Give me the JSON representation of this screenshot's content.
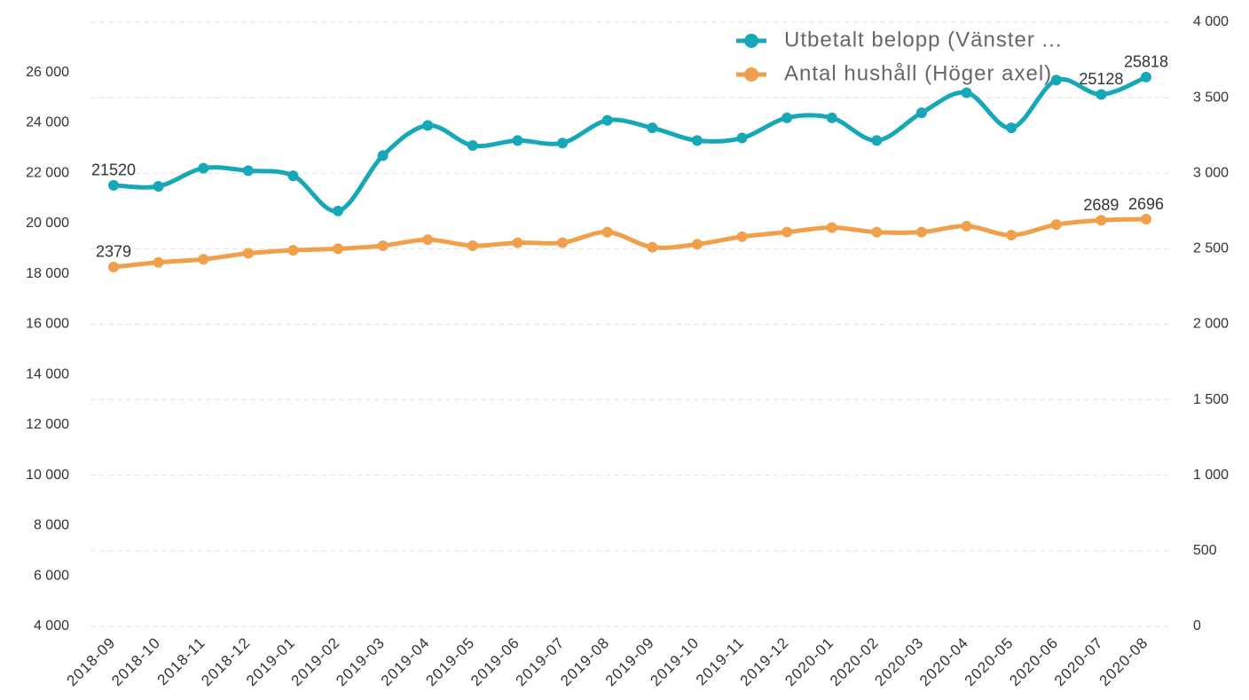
{
  "chart_data": {
    "type": "line",
    "x": [
      "2018-09",
      "2018-10",
      "2018-11",
      "2018-12",
      "2019-01",
      "2019-02",
      "2019-03",
      "2019-04",
      "2019-05",
      "2019-06",
      "2019-07",
      "2019-08",
      "2019-09",
      "2019-10",
      "2019-11",
      "2019-12",
      "2020-01",
      "2020-02",
      "2020-03",
      "2020-04",
      "2020-05",
      "2020-06",
      "2020-07",
      "2020-08"
    ],
    "series": [
      {
        "name": "Utbetalt belopp (Vänster ...",
        "color": "#17a8b8",
        "values": [
          21520,
          21480,
          22200,
          22100,
          21900,
          20500,
          22700,
          23900,
          23100,
          23300,
          23200,
          24100,
          23800,
          23300,
          23400,
          24200,
          24200,
          23300,
          24400,
          25200,
          23800,
          25700,
          25128,
          25818
        ],
        "value_labels": [
          "21520",
          null,
          null,
          null,
          null,
          null,
          null,
          null,
          null,
          null,
          null,
          null,
          null,
          null,
          null,
          null,
          null,
          null,
          null,
          null,
          null,
          null,
          "25128",
          "25818"
        ]
      },
      {
        "name": "Antal hushåll (Höger axel)",
        "color": "#f0a04b",
        "axis": "y2",
        "values": [
          2379,
          2410,
          2430,
          2470,
          2490,
          2500,
          2520,
          2560,
          2520,
          2540,
          2540,
          2610,
          2510,
          2530,
          2580,
          2610,
          2640,
          2610,
          2610,
          2650,
          2590,
          2660,
          2689,
          2696
        ],
        "value_labels": [
          "2379",
          null,
          null,
          null,
          null,
          null,
          null,
          null,
          null,
          null,
          null,
          null,
          null,
          null,
          null,
          null,
          null,
          null,
          null,
          null,
          null,
          null,
          "2689",
          "2696"
        ]
      }
    ],
    "ylim": [
      4000,
      28000
    ],
    "yticks": [
      {
        "value": 4000,
        "label": "4 000"
      },
      {
        "value": 6000,
        "label": "6 000"
      },
      {
        "value": 8000,
        "label": "8 000"
      },
      {
        "value": 10000,
        "label": "10 000"
      },
      {
        "value": 12000,
        "label": "12 000"
      },
      {
        "value": 14000,
        "label": "14 000"
      },
      {
        "value": 16000,
        "label": "16 000"
      },
      {
        "value": 18000,
        "label": "18 000"
      },
      {
        "value": 20000,
        "label": "20 000"
      },
      {
        "value": 22000,
        "label": "22 000"
      },
      {
        "value": 24000,
        "label": "24 000"
      },
      {
        "value": 26000,
        "label": "26 000"
      }
    ],
    "y2lim": [
      0,
      4000
    ],
    "y2ticks": [
      0,
      500,
      {
        "value": 1000,
        "label": "1 000"
      },
      {
        "value": 1500,
        "label": "1 500"
      },
      {
        "value": 2000,
        "label": "2 000"
      },
      {
        "value": 2500,
        "label": "2 500"
      },
      {
        "value": 3000,
        "label": "3 000"
      },
      {
        "value": 3500,
        "label": "3 500"
      },
      {
        "value": 4000,
        "label": "4 000"
      }
    ],
    "grid": true,
    "legend": "top-right"
  }
}
